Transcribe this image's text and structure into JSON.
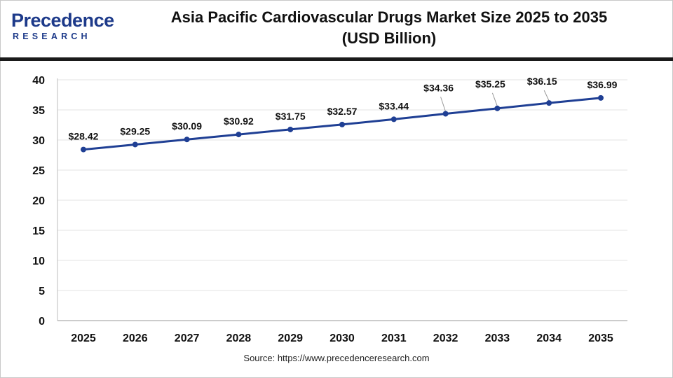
{
  "header": {
    "logo_word": "Precedence",
    "logo_sub": "RESEARCH",
    "title_line1": "Asia Pacific Cardiovascular Drugs Market Size 2025 to 2035",
    "title_line2": "(USD Billion)"
  },
  "source": "Source: https://www.precedenceresearch.com",
  "colors": {
    "line": "#1f3f94",
    "brand": "#1d3a8a",
    "grid": "#e3e3e3"
  },
  "chart_data": {
    "type": "line",
    "categories": [
      "2025",
      "2026",
      "2027",
      "2028",
      "2029",
      "2030",
      "2031",
      "2032",
      "2033",
      "2034",
      "2035"
    ],
    "series": [
      {
        "values": [
          28.42,
          29.25,
          30.09,
          30.92,
          31.75,
          32.57,
          33.44,
          34.36,
          35.25,
          36.15,
          36.99
        ],
        "labels": [
          "$28.42",
          "$29.25",
          "$30.09",
          "$30.92",
          "$31.75",
          "$32.57",
          "$33.44",
          "$34.36",
          "$35.25",
          "$36.15",
          "$36.99"
        ]
      }
    ],
    "yticks": [
      "0",
      "5",
      "10",
      "15",
      "20",
      "25",
      "30",
      "35",
      "40"
    ],
    "ylim": [
      0,
      40
    ],
    "grid": true,
    "legend": "none"
  }
}
